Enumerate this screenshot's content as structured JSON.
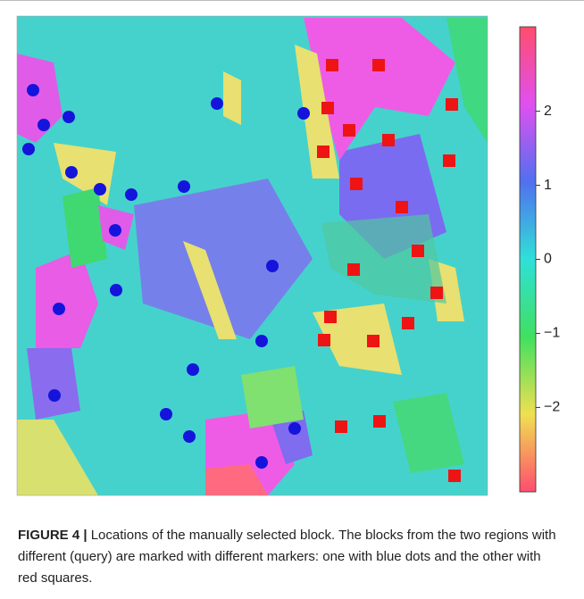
{
  "chart_data": {
    "type": "scatter",
    "xlim": [
      0,
      527
    ],
    "ylim": [
      537,
      0
    ],
    "series": [
      {
        "color": "#1414dc",
        "marker": "circle",
        "x": [
          18,
          30,
          58,
          13,
          61,
          93,
          128,
          187,
          224,
          321,
          110,
          286,
          111,
          47,
          274,
          197,
          42,
          167,
          193,
          311,
          274
        ],
        "y": [
          83,
          122,
          113,
          149,
          175,
          194,
          200,
          191,
          98,
          109,
          240,
          280,
          307,
          328,
          364,
          396,
          425,
          446,
          471,
          462,
          500
        ]
      },
      {
        "color": "#ee1414",
        "marker": "square",
        "x": [
          353,
          405,
          348,
          487,
          372,
          416,
          343,
          484,
          380,
          431,
          449,
          377,
          470,
          351,
          438,
          344,
          399,
          406,
          363,
          490
        ],
        "y": [
          55,
          55,
          103,
          99,
          128,
          139,
          152,
          162,
          188,
          214,
          263,
          284,
          310,
          337,
          344,
          363,
          364,
          454,
          460,
          515
        ]
      }
    ],
    "colorbar": {
      "lim": [
        -3.14,
        3.14
      ],
      "colors": [
        "#ff4d6d",
        "#f0e050",
        "#40e060",
        "#30e0d8",
        "#5070f0",
        "#e050f0",
        "#ff4d6d"
      ],
      "ticks": [
        {
          "value": -2,
          "label": "−2"
        },
        {
          "value": -1,
          "label": "−1"
        },
        0,
        1,
        2
      ]
    }
  },
  "caption": {
    "label": "FIGURE 4 |",
    "text": "Locations of the manually selected block. The blocks from the two regions with different (query) are marked with different markers: one with blue dots and the other with red squares."
  }
}
